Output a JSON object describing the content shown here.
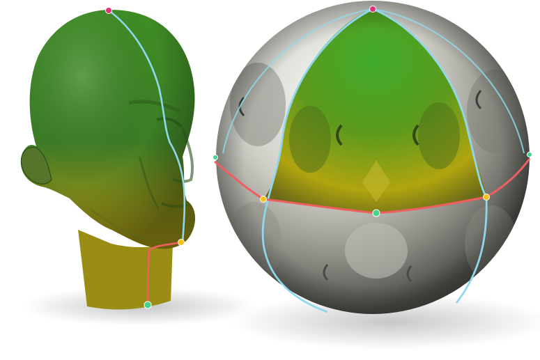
{
  "scene": {
    "objects": [
      {
        "id": "head",
        "kind": "3d-head-mesh"
      },
      {
        "id": "sphere",
        "kind": "3d-sphere-parameterization"
      }
    ],
    "colors": {
      "background": "#ffffff",
      "surface_green": "#3f8a25",
      "surface_yellow": "#a39a14",
      "metal_light": "#e9e9e3",
      "metal_dark": "#5d5d58",
      "cut_blue": "#8fd8ec",
      "cut_red": "#ef5f5f",
      "marker_pink": "#e0347a",
      "marker_yellow": "#f2c31a",
      "marker_green": "#43d18c"
    },
    "markers": [
      {
        "name": "head-top-marker",
        "color": "pink"
      },
      {
        "name": "head-chin-marker",
        "color": "yellow"
      },
      {
        "name": "head-neck-marker",
        "color": "green"
      },
      {
        "name": "sphere-top-marker",
        "color": "pink"
      },
      {
        "name": "sphere-left-equator-marker",
        "color": "yellow"
      },
      {
        "name": "sphere-front-equator-marker",
        "color": "green"
      },
      {
        "name": "sphere-right-equator-marker",
        "color": "yellow"
      },
      {
        "name": "sphere-left-edge-marker",
        "color": "green"
      },
      {
        "name": "sphere-right-edge-marker",
        "color": "green"
      }
    ]
  }
}
